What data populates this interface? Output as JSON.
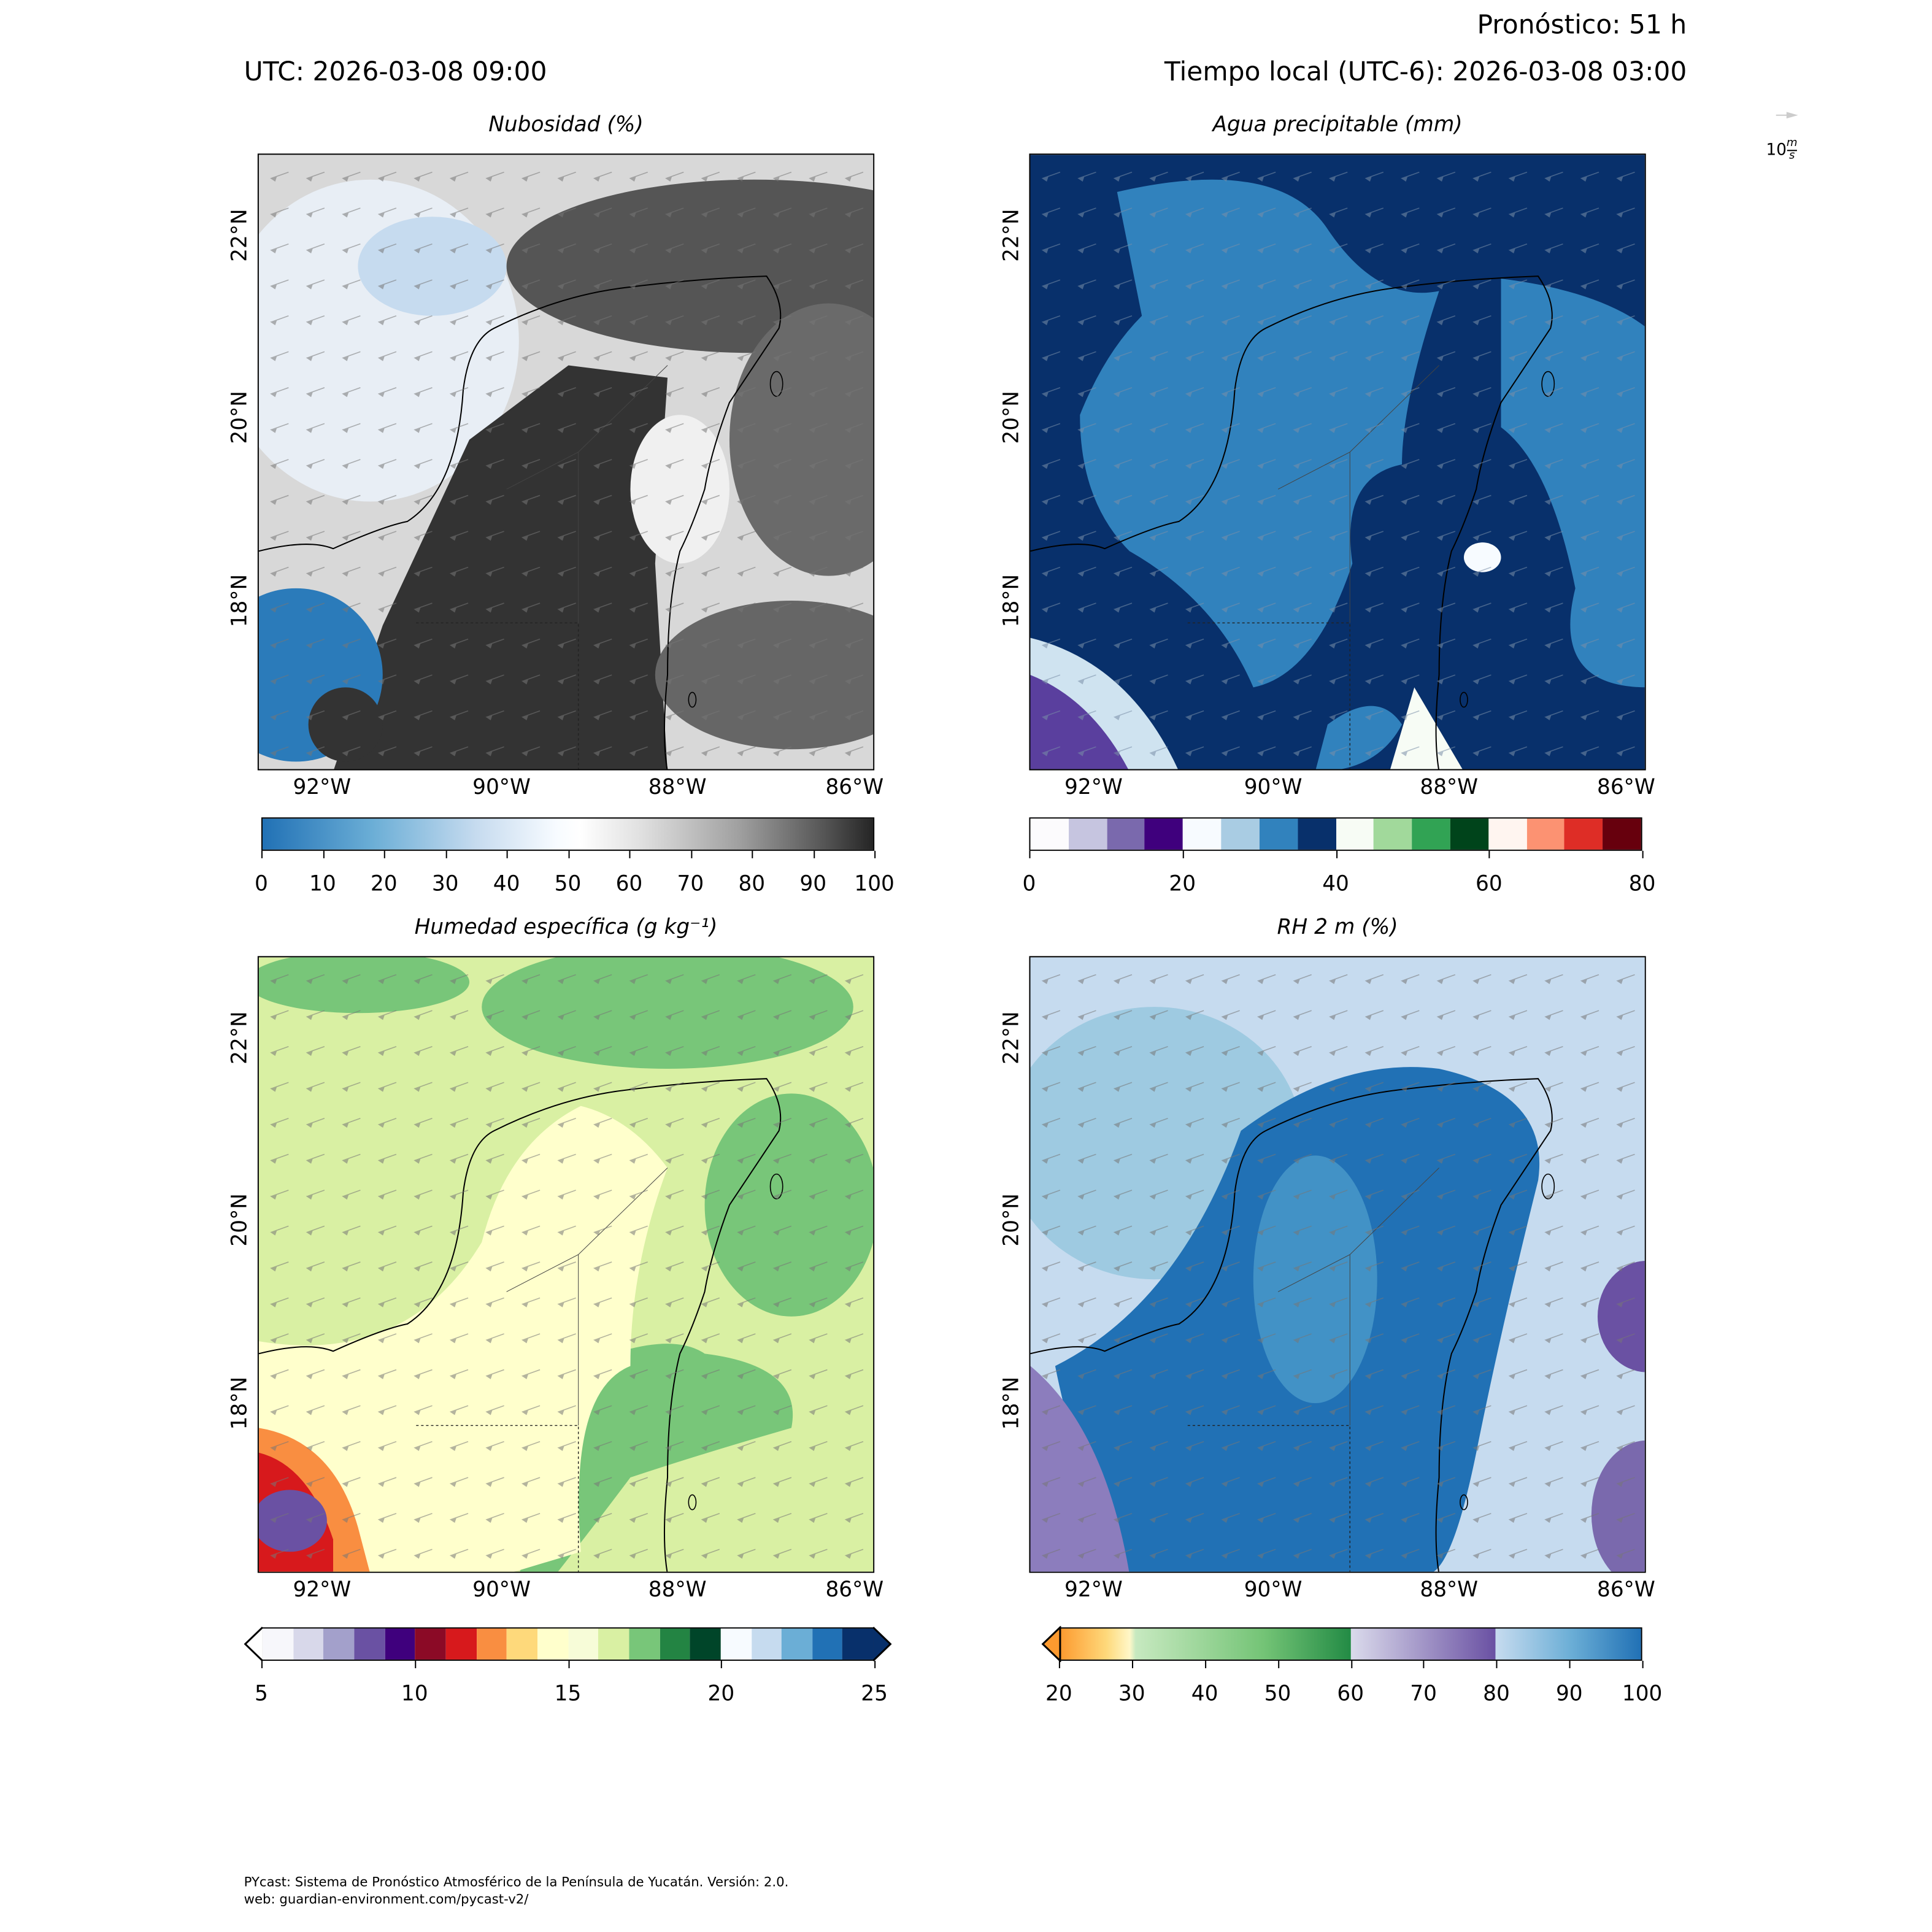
{
  "header": {
    "forecast": "Pronóstico: 51 h",
    "utc": "UTC:  2026-03-08 09:00",
    "local": "Tiempo local (UTC-6): 2026-03-08 03:00",
    "wind_key_value": "10",
    "wind_key_unit_num": "m",
    "wind_key_unit_den": "s"
  },
  "axes": {
    "lat_labels": [
      "22°N",
      "20°N",
      "18°N"
    ],
    "lon_labels": [
      "92°W",
      "90°W",
      "88°W",
      "86°W"
    ]
  },
  "panels": [
    {
      "title": "Nubosidad (%)",
      "colorbar_labels": [
        "0",
        "10",
        "20",
        "30",
        "40",
        "50",
        "60",
        "70",
        "80",
        "90",
        "100"
      ]
    },
    {
      "title": "Agua precipitable (mm)",
      "colorbar_labels": [
        "0",
        "20",
        "40",
        "60",
        "80"
      ],
      "colors": [
        "#fcfbfd",
        "#c6c5e0",
        "#7a69ad",
        "#3f007d",
        "#f7fbff",
        "#a9cce3",
        "#3182bd",
        "#08306b",
        "#f7fcf5",
        "#a1d99b",
        "#31a354",
        "#00441b",
        "#fff5f0",
        "#fc9272",
        "#de2d26",
        "#67000d"
      ]
    },
    {
      "title": "Humedad específica (g kg⁻¹)",
      "colorbar_labels": [
        "5",
        "10",
        "15",
        "20",
        "25"
      ],
      "colors": [
        "#f7f7fb",
        "#d8d8ea",
        "#a3a0cb",
        "#6a51a3",
        "#3f007d",
        "#8b0a26",
        "#d7191c",
        "#f98e41",
        "#fed97b",
        "#ffffcc",
        "#f7fcd8",
        "#d9f0a3",
        "#78c679",
        "#238443",
        "#004529",
        "#f7fbff",
        "#c6dbef",
        "#6baed6",
        "#2171b5",
        "#08306b"
      ]
    },
    {
      "title": "RH 2 m (%)",
      "colorbar_labels": [
        "20",
        "30",
        "40",
        "50",
        "60",
        "70",
        "80",
        "90",
        "100"
      ]
    }
  ],
  "footer": {
    "line1": "PYcast: Sistema de Pronóstico Atmosférico de la Península de Yucatán. Versión: 2.0.",
    "line2": "web: guardian-environment.com/pycast-v2/"
  }
}
